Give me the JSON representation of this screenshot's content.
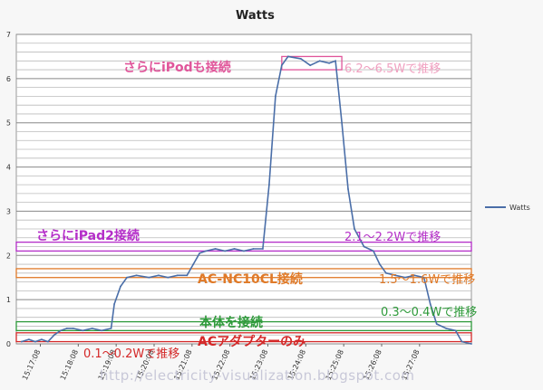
{
  "chart_data": {
    "type": "line",
    "title": "Watts",
    "ylim": [
      0,
      7
    ],
    "yticks": [
      "0",
      "1",
      "2",
      "3",
      "4",
      "5",
      "6",
      "7"
    ],
    "xticks": [
      "15:17:08",
      "15:18:08",
      "15:19:08",
      "15:20:08",
      "15:21:08",
      "15:22:08",
      "15:23:08",
      "15:24:08",
      "15:25:08",
      "15:26:08",
      "15:27:08"
    ],
    "legend": "right",
    "grid": true,
    "series": [
      {
        "name": "Watts",
        "color": "#4a6ea8",
        "points": [
          [
            "15:16:38",
            0.05
          ],
          [
            "15:16:50",
            0.1
          ],
          [
            "15:17:00",
            0.05
          ],
          [
            "15:17:10",
            0.1
          ],
          [
            "15:17:20",
            0.05
          ],
          [
            "15:17:30",
            0.2
          ],
          [
            "15:17:40",
            0.3
          ],
          [
            "15:17:50",
            0.35
          ],
          [
            "15:18:00",
            0.35
          ],
          [
            "15:18:15",
            0.3
          ],
          [
            "15:18:30",
            0.35
          ],
          [
            "15:18:45",
            0.3
          ],
          [
            "15:19:00",
            0.35
          ],
          [
            "15:19:05",
            0.9
          ],
          [
            "15:19:15",
            1.3
          ],
          [
            "15:19:25",
            1.5
          ],
          [
            "15:19:40",
            1.55
          ],
          [
            "15:20:00",
            1.5
          ],
          [
            "15:20:15",
            1.55
          ],
          [
            "15:20:30",
            1.5
          ],
          [
            "15:20:45",
            1.55
          ],
          [
            "15:21:00",
            1.55
          ],
          [
            "15:21:10",
            1.8
          ],
          [
            "15:21:20",
            2.05
          ],
          [
            "15:21:30",
            2.1
          ],
          [
            "15:21:45",
            2.15
          ],
          [
            "15:22:00",
            2.1
          ],
          [
            "15:22:15",
            2.15
          ],
          [
            "15:22:30",
            2.1
          ],
          [
            "15:22:45",
            2.15
          ],
          [
            "15:23:00",
            2.15
          ],
          [
            "15:23:10",
            3.6
          ],
          [
            "15:23:20",
            5.6
          ],
          [
            "15:23:30",
            6.3
          ],
          [
            "15:23:40",
            6.5
          ],
          [
            "15:24:00",
            6.45
          ],
          [
            "15:24:15",
            6.3
          ],
          [
            "15:24:30",
            6.4
          ],
          [
            "15:24:45",
            6.35
          ],
          [
            "15:24:55",
            6.4
          ],
          [
            "15:25:05",
            5.0
          ],
          [
            "15:25:15",
            3.5
          ],
          [
            "15:25:25",
            2.6
          ],
          [
            "15:25:40",
            2.2
          ],
          [
            "15:25:55",
            2.1
          ],
          [
            "15:26:05",
            1.8
          ],
          [
            "15:26:15",
            1.6
          ],
          [
            "15:26:30",
            1.55
          ],
          [
            "15:26:45",
            1.5
          ],
          [
            "15:27:00",
            1.55
          ],
          [
            "15:27:15",
            1.5
          ],
          [
            "15:27:25",
            0.9
          ],
          [
            "15:27:35",
            0.45
          ],
          [
            "15:27:50",
            0.35
          ],
          [
            "15:28:05",
            0.3
          ],
          [
            "15:28:15",
            0.05
          ],
          [
            "15:28:30",
            0.0
          ]
        ]
      }
    ],
    "annotations": [
      {
        "text": "さらにiPodも接続",
        "color": "#e0559a",
        "value_text": "6.2〜6.5Wで推移",
        "value_color": "#f0a0c0"
      },
      {
        "text": "さらにiPad2接続",
        "color": "#b42ec8",
        "value_text": "2.1〜2.2Wで推移",
        "value_color": "#b42ec8"
      },
      {
        "text": "AC-NC10CL接続",
        "color": "#e07a28",
        "value_text": "1.5〜1.6Wで推移",
        "value_color": "#e07a28"
      },
      {
        "text": "本体を接続",
        "color": "#2e9a3a",
        "value_text": "0.3〜0.4Wで推移",
        "value_color": "#2e9a3a"
      },
      {
        "text": "ACアダプターのみ",
        "color": "#d42828",
        "value_text": "0.1〜0.2Wで推移",
        "value_color": "#d42828"
      }
    ],
    "watermark": "http://electricity-visualization.blogspot.com"
  }
}
